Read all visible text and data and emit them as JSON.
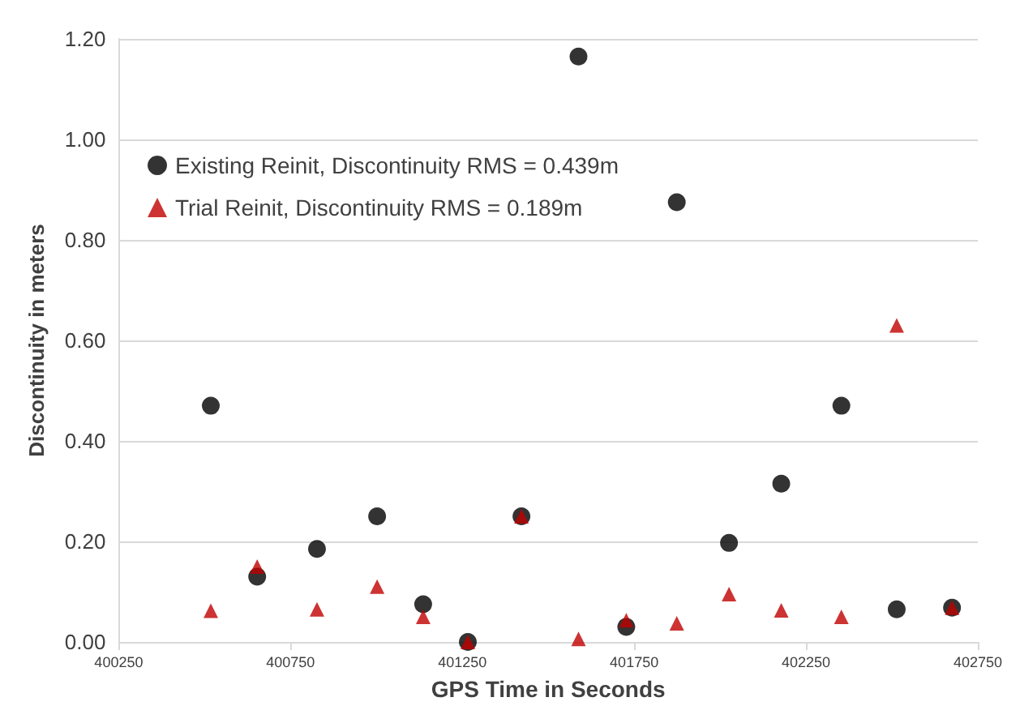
{
  "chart_data": {
    "type": "scatter",
    "xlabel": "GPS Time in Seconds",
    "ylabel": "Discontinuity in meters",
    "xlim": [
      400250,
      402750
    ],
    "xticks": [
      400250,
      400750,
      401250,
      401750,
      402250,
      402750
    ],
    "ylim": [
      0,
      1.2
    ],
    "yticks": [
      {
        "value": 0,
        "label": "0.00"
      },
      {
        "value": 0.2,
        "label": "0.20"
      },
      {
        "value": 0.4,
        "label": "0.40"
      },
      {
        "value": 0.6,
        "label": "0.60"
      },
      {
        "value": 0.8,
        "label": "0.80"
      },
      {
        "value": 1,
        "label": "1.00"
      },
      {
        "value": 1.2,
        "label": "1.20"
      }
    ],
    "grid": "y",
    "legend": "top left",
    "x": [
      400518,
      400653,
      400827,
      401002,
      401136,
      401266,
      401422,
      401588,
      401727,
      401874,
      402026,
      402178,
      402353,
      402514,
      402675
    ],
    "series": [
      {
        "name": "Existing Reinit, Discontinuity RMS = 0.439m",
        "color": "#000000",
        "marker": "circle",
        "values": [
          0.47,
          0.13,
          0.185,
          0.25,
          0.075,
          0.0,
          0.25,
          1.165,
          0.03,
          0.875,
          0.197,
          0.315,
          0.47,
          0.065,
          0.068
        ]
      },
      {
        "name": "Trial Reinit, Discontinuity RMS = 0.189m",
        "color": "#c00000",
        "marker": "triangle",
        "values": [
          0.062,
          0.15,
          0.065,
          0.11,
          0.05,
          0.0,
          0.25,
          0.006,
          0.043,
          0.037,
          0.095,
          0.063,
          0.05,
          0.63,
          0.068
        ]
      }
    ]
  }
}
